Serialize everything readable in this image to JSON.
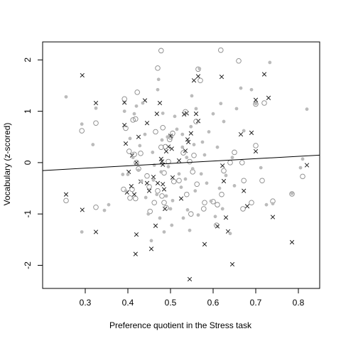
{
  "chart_data": {
    "type": "scatter",
    "title": "",
    "xlabel": "Preference quotient in the Stress task",
    "ylabel": "Vocabulary (z-scored)",
    "xlim": [
      0.2,
      0.85
    ],
    "ylim": [
      -2.45,
      2.35
    ],
    "xticks": [
      0.3,
      0.4,
      0.5,
      0.6,
      0.7,
      0.8
    ],
    "xtick_labels": [
      "0.3",
      "0.4",
      "0.5",
      "0.6",
      "0.7",
      "0.8"
    ],
    "yticks": [
      -2,
      -1,
      0,
      1,
      2
    ],
    "ytick_labels": [
      "-2",
      "-1",
      "0",
      "1",
      "2"
    ],
    "grid": false,
    "legend": "none",
    "colors": {
      "cross": "#222222",
      "open_circle": "#888888",
      "filled_dot": "#bbbbbb",
      "line": "#000000",
      "axes": "#000000"
    },
    "series": [
      {
        "marker": "cross",
        "points": [
          [
            0.255,
            -0.62
          ],
          [
            0.293,
            1.7
          ],
          [
            0.293,
            -0.92
          ],
          [
            0.325,
            1.16
          ],
          [
            0.325,
            -1.35
          ],
          [
            0.392,
            1.17
          ],
          [
            0.392,
            0.73
          ],
          [
            0.395,
            0.37
          ],
          [
            0.398,
            -0.58
          ],
          [
            0.402,
            -0.18
          ],
          [
            0.408,
            -0.46
          ],
          [
            0.41,
            0.14
          ],
          [
            0.415,
            -0.62
          ],
          [
            0.418,
            -1.78
          ],
          [
            0.42,
            -1.4
          ],
          [
            0.42,
            0.0
          ],
          [
            0.425,
            0.5
          ],
          [
            0.43,
            -0.37
          ],
          [
            0.44,
            1.21
          ],
          [
            0.445,
            0.77
          ],
          [
            0.445,
            -0.4
          ],
          [
            0.45,
            -0.55
          ],
          [
            0.455,
            -1.68
          ],
          [
            0.46,
            -0.28
          ],
          [
            0.465,
            -1.23
          ],
          [
            0.468,
            0.95
          ],
          [
            0.47,
            -0.4
          ],
          [
            0.475,
            1.16
          ],
          [
            0.478,
            0.07
          ],
          [
            0.48,
            0.02
          ],
          [
            0.482,
            -0.04
          ],
          [
            0.482,
            -0.42
          ],
          [
            0.485,
            -0.52
          ],
          [
            0.487,
            -0.9
          ],
          [
            0.49,
            0.22
          ],
          [
            0.495,
            0.31
          ],
          [
            0.5,
            0.52
          ],
          [
            0.503,
            0.27
          ],
          [
            0.505,
            -0.29
          ],
          [
            0.52,
            0.04
          ],
          [
            0.525,
            -0.7
          ],
          [
            0.532,
            0.94
          ],
          [
            0.535,
            0.23
          ],
          [
            0.538,
            0.96
          ],
          [
            0.54,
            0.45
          ],
          [
            0.542,
            0.4
          ],
          [
            0.545,
            -2.27
          ],
          [
            0.548,
            0.57
          ],
          [
            0.555,
            1.6
          ],
          [
            0.56,
            0.95
          ],
          [
            0.565,
            0.81
          ],
          [
            0.565,
            1.68
          ],
          [
            0.58,
            -1.59
          ],
          [
            0.61,
            -1.24
          ],
          [
            0.62,
            1.67
          ],
          [
            0.622,
            -0.06
          ],
          [
            0.625,
            -0.36
          ],
          [
            0.63,
            -1.07
          ],
          [
            0.635,
            -1.34
          ],
          [
            0.645,
            -1.98
          ],
          [
            0.665,
            0.55
          ],
          [
            0.672,
            -0.55
          ],
          [
            0.68,
            -0.85
          ],
          [
            0.69,
            0.58
          ],
          [
            0.7,
            1.22
          ],
          [
            0.7,
            0.22
          ],
          [
            0.72,
            1.72
          ],
          [
            0.73,
            1.26
          ],
          [
            0.74,
            -1.06
          ],
          [
            0.785,
            -1.55
          ],
          [
            0.82,
            -0.05
          ]
        ]
      },
      {
        "marker": "open_circle",
        "points": [
          [
            0.255,
            -0.74
          ],
          [
            0.292,
            0.62
          ],
          [
            0.325,
            0.77
          ],
          [
            0.325,
            -0.87
          ],
          [
            0.39,
            -0.52
          ],
          [
            0.392,
            1.24
          ],
          [
            0.395,
            0.67
          ],
          [
            0.403,
            0.22
          ],
          [
            0.405,
            -0.69
          ],
          [
            0.41,
            -0.52
          ],
          [
            0.412,
            0.83
          ],
          [
            0.415,
            0.16
          ],
          [
            0.418,
            -0.7
          ],
          [
            0.418,
            0.85
          ],
          [
            0.42,
            0.0
          ],
          [
            0.422,
            1.37
          ],
          [
            0.425,
            -0.12
          ],
          [
            0.43,
            0.18
          ],
          [
            0.445,
            -0.26
          ],
          [
            0.45,
            -0.47
          ],
          [
            0.452,
            -0.95
          ],
          [
            0.462,
            -0.78
          ],
          [
            0.465,
            0.6
          ],
          [
            0.47,
            -0.55
          ],
          [
            0.47,
            1.84
          ],
          [
            0.478,
            2.18
          ],
          [
            0.478,
            0.3
          ],
          [
            0.48,
            -0.65
          ],
          [
            0.482,
            0.68
          ],
          [
            0.485,
            -0.2
          ],
          [
            0.485,
            -0.78
          ],
          [
            0.488,
            0.31
          ],
          [
            0.49,
            -0.88
          ],
          [
            0.495,
            0.02
          ],
          [
            0.498,
            0.45
          ],
          [
            0.5,
            0.5
          ],
          [
            0.505,
            0.57
          ],
          [
            0.508,
            -0.37
          ],
          [
            0.52,
            -0.35
          ],
          [
            0.53,
            0.19
          ],
          [
            0.535,
            0.99
          ],
          [
            0.538,
            -0.62
          ],
          [
            0.545,
            0.02
          ],
          [
            0.548,
            -1.0
          ],
          [
            0.552,
            -0.18
          ],
          [
            0.555,
            0.14
          ],
          [
            0.56,
            0.8
          ],
          [
            0.562,
            -0.42
          ],
          [
            0.565,
            1.82
          ],
          [
            0.57,
            1.6
          ],
          [
            0.578,
            -0.9
          ],
          [
            0.58,
            -0.78
          ],
          [
            0.6,
            -0.76
          ],
          [
            0.608,
            -1.22
          ],
          [
            0.61,
            -0.82
          ],
          [
            0.618,
            2.19
          ],
          [
            0.62,
            -0.62
          ],
          [
            0.625,
            -0.16
          ],
          [
            0.64,
            0.0
          ],
          [
            0.65,
            0.2
          ],
          [
            0.66,
            1.98
          ],
          [
            0.668,
            0.0
          ],
          [
            0.67,
            -0.9
          ],
          [
            0.672,
            -0.35
          ],
          [
            0.69,
            -0.78
          ],
          [
            0.7,
            0.33
          ],
          [
            0.7,
            1.14
          ],
          [
            0.715,
            -0.35
          ],
          [
            0.72,
            1.16
          ],
          [
            0.74,
            -0.75
          ],
          [
            0.785,
            -0.61
          ],
          [
            0.81,
            -0.27
          ]
        ]
      },
      {
        "marker": "filled_dot",
        "points": [
          [
            0.255,
            1.28
          ],
          [
            0.292,
            -1.35
          ],
          [
            0.292,
            0.75
          ],
          [
            0.318,
            0.35
          ],
          [
            0.325,
            1.06
          ],
          [
            0.345,
            -0.93
          ],
          [
            0.355,
            -0.82
          ],
          [
            0.388,
            -0.23
          ],
          [
            0.392,
            1.0
          ],
          [
            0.4,
            -0.23
          ],
          [
            0.405,
            0.47
          ],
          [
            0.412,
            0.1
          ],
          [
            0.415,
            0.95
          ],
          [
            0.42,
            1.1
          ],
          [
            0.425,
            -0.15
          ],
          [
            0.428,
            0.33
          ],
          [
            0.432,
            -0.36
          ],
          [
            0.435,
            1.16
          ],
          [
            0.44,
            0.55
          ],
          [
            0.442,
            -0.68
          ],
          [
            0.448,
            -1.0
          ],
          [
            0.455,
            -1.52
          ],
          [
            0.46,
            -0.34
          ],
          [
            0.462,
            -0.05
          ],
          [
            0.468,
            -0.62
          ],
          [
            0.47,
            1.42
          ],
          [
            0.472,
            1.62
          ],
          [
            0.475,
            -1.08
          ],
          [
            0.478,
            -0.18
          ],
          [
            0.48,
            0.44
          ],
          [
            0.482,
            0.96
          ],
          [
            0.485,
            -1.35
          ],
          [
            0.49,
            -0.65
          ],
          [
            0.493,
            0.5
          ],
          [
            0.495,
            -0.08
          ],
          [
            0.5,
            -0.9
          ],
          [
            0.503,
            -1.22
          ],
          [
            0.505,
            -0.74
          ],
          [
            0.51,
            0.9
          ],
          [
            0.515,
            0.65
          ],
          [
            0.52,
            -0.22
          ],
          [
            0.525,
            -0.48
          ],
          [
            0.528,
            0.3
          ],
          [
            0.53,
            -1.08
          ],
          [
            0.535,
            -0.32
          ],
          [
            0.538,
            0.1
          ],
          [
            0.54,
            -0.92
          ],
          [
            0.545,
            -1.32
          ],
          [
            0.548,
            0.7
          ],
          [
            0.55,
            1.3
          ],
          [
            0.552,
            -0.12
          ],
          [
            0.555,
            0.35
          ],
          [
            0.558,
            -0.55
          ],
          [
            0.56,
            1.05
          ],
          [
            0.565,
            -1.02
          ],
          [
            0.568,
            1.83
          ],
          [
            0.572,
            -0.22
          ],
          [
            0.575,
            0.4
          ],
          [
            0.58,
            0.15
          ],
          [
            0.585,
            -0.4
          ],
          [
            0.59,
            0.6
          ],
          [
            0.595,
            -0.75
          ],
          [
            0.6,
            0.95
          ],
          [
            0.605,
            -1.05
          ],
          [
            0.61,
            0.3
          ],
          [
            0.615,
            -0.5
          ],
          [
            0.618,
            1.15
          ],
          [
            0.622,
            -0.9
          ],
          [
            0.625,
            0.8
          ],
          [
            0.63,
            -0.25
          ],
          [
            0.64,
            -1.38
          ],
          [
            0.645,
            0.1
          ],
          [
            0.65,
            -0.45
          ],
          [
            0.655,
            1.05
          ],
          [
            0.665,
            1.45
          ],
          [
            0.672,
            0.62
          ],
          [
            0.69,
            1.42
          ],
          [
            0.7,
            1.15
          ],
          [
            0.712,
            -0.1
          ],
          [
            0.725,
            -0.82
          ],
          [
            0.733,
            1.95
          ],
          [
            0.74,
            -0.8
          ],
          [
            0.785,
            -0.6
          ],
          [
            0.81,
            0.07
          ],
          [
            0.82,
            1.04
          ],
          [
            0.805,
            -0.1
          ],
          [
            0.395,
            -0.55
          ],
          [
            0.458,
            0.2
          ],
          [
            0.528,
            0.55
          ]
        ]
      }
    ],
    "regression_line": {
      "x": [
        0.2,
        0.85
      ],
      "y": [
        -0.155,
        0.145
      ]
    }
  }
}
